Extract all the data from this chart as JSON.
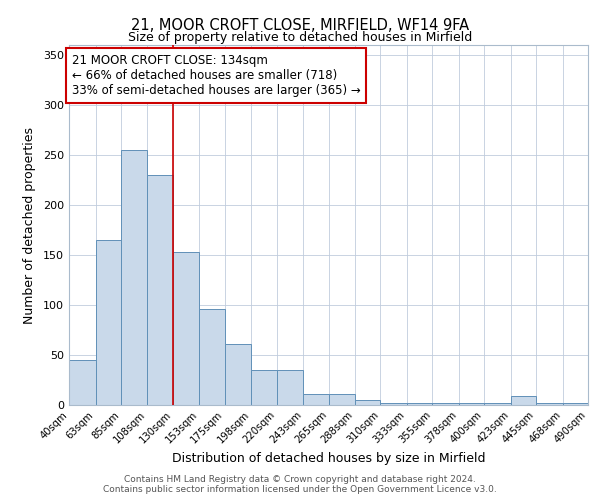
{
  "title1": "21, MOOR CROFT CLOSE, MIRFIELD, WF14 9FA",
  "title2": "Size of property relative to detached houses in Mirfield",
  "xlabel": "Distribution of detached houses by size in Mirfield",
  "ylabel": "Number of detached properties",
  "footer1": "Contains HM Land Registry data © Crown copyright and database right 2024.",
  "footer2": "Contains public sector information licensed under the Open Government Licence v3.0.",
  "bin_edges": [
    40,
    63,
    85,
    108,
    130,
    153,
    175,
    198,
    220,
    243,
    265,
    288,
    310,
    333,
    355,
    378,
    400,
    423,
    445,
    468,
    490
  ],
  "bar_heights": [
    45,
    165,
    255,
    230,
    153,
    96,
    61,
    35,
    35,
    11,
    11,
    5,
    2,
    2,
    2,
    2,
    2,
    9,
    2,
    2
  ],
  "bar_facecolor": "#c9d9ea",
  "bar_edgecolor": "#6090b8",
  "vline_x": 130,
  "vline_color": "#cc0000",
  "annotation_line1": "21 MOOR CROFT CLOSE: 134sqm",
  "annotation_line2": "← 66% of detached houses are smaller (718)",
  "annotation_line3": "33% of semi-detached houses are larger (365) →",
  "annotation_box_facecolor": "#ffffff",
  "annotation_box_edgecolor": "#cc0000",
  "ylim": [
    0,
    360
  ],
  "xlim": [
    40,
    490
  ],
  "background_color": "#ffffff",
  "grid_color": "#c0ccdd"
}
